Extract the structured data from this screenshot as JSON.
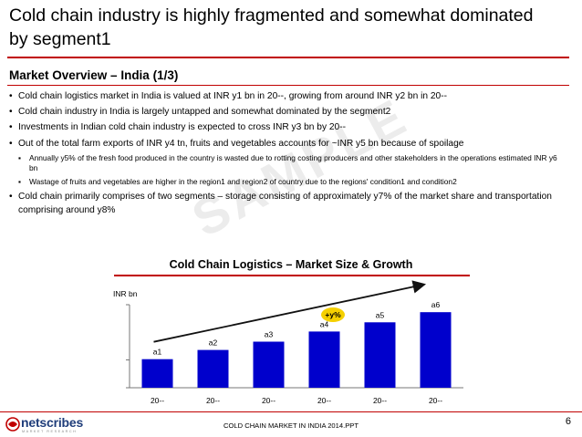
{
  "slide": {
    "title": "Cold chain industry is highly fragmented and somewhat dominated by segment1",
    "section": "Market Overview – India (1/3)",
    "watermark": "SAMPLE",
    "bullets": [
      {
        "level": 1,
        "text": "Cold chain logistics market in India is valued at INR y1 bn in 20--, growing from around INR y2 bn in 20--"
      },
      {
        "level": 1,
        "text": "Cold chain industry in India is largely untapped and somewhat dominated by the segment2"
      },
      {
        "level": 1,
        "text": "Investments in Indian cold chain industry is expected to cross INR y3 bn by 20--"
      },
      {
        "level": 1,
        "text": "Out of the total farm exports of INR y4 tn, fruits and vegetables accounts for ~INR y5 bn because of spoilage"
      },
      {
        "level": 2,
        "text": "Annually y5% of the fresh food produced in the country is wasted due to rotting costing producers and other stakeholders in the operations estimated INR y6 bn"
      },
      {
        "level": 2,
        "text": "Wastage of fruits and vegetables are higher in the region1 and region2 of country due to the regions' condition1 and condition2"
      },
      {
        "level": 1,
        "text": "Cold chain primarily comprises of two segments – storage consisting of approximately y7% of the market share and transportation comprising around y8%"
      }
    ]
  },
  "footer": {
    "brand": "netscribes",
    "tagline": "MARKET RESEARCH",
    "text": "COLD CHAIN MARKET IN INDIA 2014.PPT",
    "page": "6"
  },
  "colors": {
    "accent_red": "#c00000",
    "bar_blue": "#0000cc",
    "growth_badge": "#f5d000",
    "brand_blue": "#1f3d7a"
  },
  "chart_data": {
    "type": "bar",
    "title": "Cold Chain Logistics – Market Size & Growth",
    "ylabel": "INR bn",
    "xlabel": "",
    "categories": [
      "20--",
      "20--",
      "20--",
      "20--",
      "20--",
      "20--"
    ],
    "values": [
      31,
      41,
      50,
      61,
      71,
      82
    ],
    "data_labels": [
      "a1",
      "a2",
      "a3",
      "a4",
      "a5",
      "a6"
    ],
    "ylim": [
      0,
      100
    ],
    "growth_label": "+y%",
    "grid": false
  }
}
